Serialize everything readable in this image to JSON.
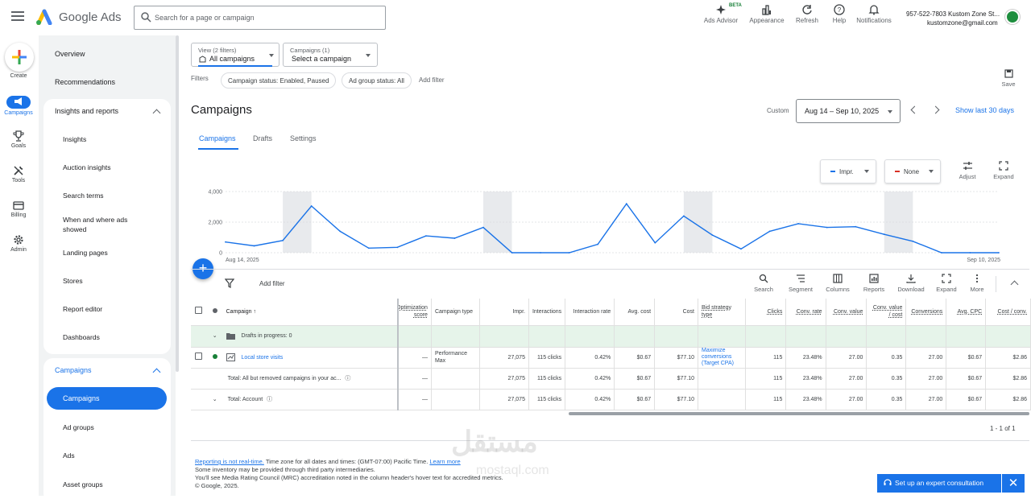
{
  "header": {
    "brand": "Google Ads",
    "search_placeholder": "Search for a page or campaign",
    "icons": [
      {
        "name": "ads-advisor",
        "label": "Ads Advisor"
      },
      {
        "name": "appearance",
        "label": "Appearance"
      },
      {
        "name": "refresh",
        "label": "Refresh"
      },
      {
        "name": "help",
        "label": "Help"
      },
      {
        "name": "notifications",
        "label": "Notifications"
      }
    ],
    "beta_badge": "BETA",
    "account_line1": "957-522-7803 Kustom Zone St...",
    "account_line2": "kustomzone@gmail.com"
  },
  "rail": {
    "create": "Create",
    "items": [
      "Campaigns",
      "Goals",
      "Tools",
      "Billing",
      "Admin"
    ]
  },
  "sidenav": {
    "overview": "Overview",
    "recommendations": "Recommendations",
    "insights_group": "Insights and reports",
    "insights_items": [
      "Insights",
      "Auction insights",
      "Search terms",
      "When and where ads showed",
      "Landing pages",
      "Stores",
      "Report editor",
      "Dashboards"
    ],
    "campaigns_group": "Campaigns",
    "campaigns_active": "Campaigns",
    "campaigns_items": [
      "Ad groups",
      "Ads",
      "Asset groups"
    ]
  },
  "filters": {
    "view_small": "View (2 filters)",
    "view_value": "All campaigns",
    "campaign_small": "Campaigns (1)",
    "campaign_value": "Select a campaign",
    "label": "Filters",
    "chips": [
      "Campaign status: Enabled, Paused",
      "Ad group status: All"
    ],
    "add_filter": "Add filter",
    "save": "Save"
  },
  "page": {
    "title": "Campaigns",
    "date_label": "Custom",
    "date_range": "Aug 14 – Sep 10, 2025",
    "show_last": "Show last 30 days",
    "tabs": [
      "Campaigns",
      "Drafts",
      "Settings"
    ]
  },
  "chart_controls": {
    "metric1": "Impr.",
    "metric1_color": "#1a73e8",
    "metric2": "None",
    "metric2_color": "#d93025",
    "adjust": "Adjust",
    "expand": "Expand"
  },
  "chart_data": {
    "type": "line",
    "x_start_label": "Aug 14, 2025",
    "x_end_label": "Sep 10, 2025",
    "y_ticks": [
      "4,000",
      "2,000",
      "0"
    ],
    "ylim": [
      0,
      4000
    ],
    "series": [
      {
        "values": [
          700,
          450,
          800,
          3050,
          1400,
          300,
          350,
          1100,
          950,
          1650,
          0,
          0,
          0,
          550,
          3200,
          650,
          2400,
          1150,
          250,
          1400,
          1900,
          1650,
          1700,
          1200,
          750,
          0,
          0,
          0
        ]
      }
    ],
    "shaded_ranges": [
      [
        2,
        3
      ],
      [
        9,
        10
      ],
      [
        16,
        17
      ],
      [
        23,
        24
      ]
    ]
  },
  "table_toolbar": {
    "add_filter": "Add filter",
    "tools": [
      "Search",
      "Segment",
      "Columns",
      "Reports",
      "Download",
      "Expand",
      "More"
    ]
  },
  "table": {
    "headers": [
      "Campaign",
      "Optimization score",
      "Campaign type",
      "Impr.",
      "Interactions",
      "Interaction rate",
      "Avg. cost",
      "Cost",
      "Bid strategy type",
      "Clicks",
      "Conv. rate",
      "Conv. value",
      "Conv. value / cost",
      "Conversions",
      "Avg. CPC",
      "Cost / conv."
    ],
    "drafts_label": "Drafts in progress: 0",
    "rows": [
      {
        "campaign": "Local store visits",
        "opt": "—",
        "type": "Performance Max",
        "impr": "27,075",
        "inter": "115 clicks",
        "rate": "0.42%",
        "avgcost": "$0.67",
        "cost": "$77.10",
        "bid": "Maximize conversions (Target CPA)",
        "clicks": "115",
        "convrate": "23.48%",
        "convval": "27.00",
        "valcost": "0.35",
        "conv": "27.00",
        "cpc": "$0.67",
        "costconv": "$2.86"
      },
      {
        "campaign": "Total: All but removed campaigns in your ac...",
        "opt": "—",
        "type": "",
        "impr": "27,075",
        "inter": "115 clicks",
        "rate": "0.42%",
        "avgcost": "$0.67",
        "cost": "$77.10",
        "bid": "",
        "clicks": "115",
        "convrate": "23.48%",
        "convval": "27.00",
        "valcost": "0.35",
        "conv": "27.00",
        "cpc": "$0.67",
        "costconv": "$2.86"
      },
      {
        "campaign": "Total: Account",
        "opt": "—",
        "type": "",
        "impr": "27,075",
        "inter": "115 clicks",
        "rate": "0.42%",
        "avgcost": "$0.67",
        "cost": "$77.10",
        "bid": "",
        "clicks": "115",
        "convrate": "23.48%",
        "convval": "27.00",
        "valcost": "0.35",
        "conv": "27.00",
        "cpc": "$0.67",
        "costconv": "$2.86"
      }
    ],
    "pager": "1 - 1 of 1"
  },
  "footer": {
    "line1_link": "Reporting is not real-time.",
    "line1_text": " Time zone for all dates and times: (GMT-07:00) Pacific Time. ",
    "line1_link2": "Learn more",
    "line2": "Some inventory may be provided through third party intermediaries.",
    "line3": "You'll see Media Rating Council (MRC) accreditation noted in the column header's hover text for accredited metrics.",
    "line4": "© Google, 2025."
  },
  "expert_button": "Set up an expert consultation",
  "watermark": "مستقل",
  "watermark_url": "mostaql.com"
}
